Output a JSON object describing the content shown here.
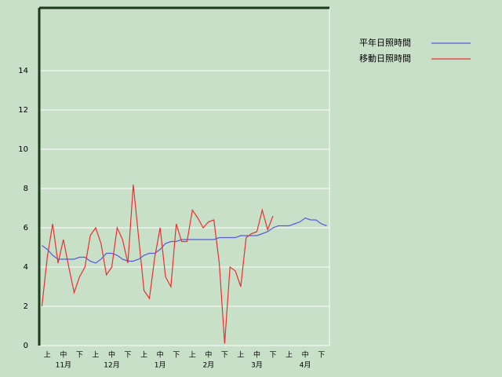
{
  "chart_data": {
    "type": "line",
    "categories": [
      null,
      "上",
      null,
      null,
      "中",
      null,
      null,
      "下",
      null,
      null,
      "上",
      null,
      null,
      "中",
      null,
      null,
      "下",
      null,
      null,
      "上",
      null,
      null,
      "中",
      null,
      null,
      "下",
      null,
      null,
      "上",
      null,
      null,
      "中",
      null,
      null,
      "下",
      null,
      null,
      "上",
      null,
      null,
      "中",
      null,
      null,
      "下",
      null,
      null,
      "上",
      null,
      null,
      "中",
      null,
      null,
      "下",
      null
    ],
    "month_labels": [
      "11月",
      "12月",
      "1月",
      "2月",
      "3月",
      "4月"
    ],
    "series": [
      {
        "name": "平年日照時間",
        "color": "#5a5ae0",
        "values": [
          5.1,
          4.9,
          4.6,
          4.4,
          4.4,
          4.4,
          4.4,
          4.5,
          4.5,
          4.3,
          4.2,
          4.4,
          4.7,
          4.7,
          4.6,
          4.4,
          4.3,
          4.3,
          4.4,
          4.6,
          4.7,
          4.7,
          4.9,
          5.2,
          5.3,
          5.3,
          5.4,
          5.4,
          5.4,
          5.4,
          5.4,
          5.4,
          5.4,
          5.5,
          5.5,
          5.5,
          5.5,
          5.6,
          5.6,
          5.6,
          5.6,
          5.7,
          5.8,
          6.0,
          6.1,
          6.1,
          6.1,
          6.2,
          6.3,
          6.5,
          6.4,
          6.4,
          6.2,
          6.1
        ]
      },
      {
        "name": "移動日照時間",
        "color": "#e83030",
        "values": [
          2.0,
          4.5,
          6.2,
          4.2,
          5.4,
          4.0,
          2.7,
          3.5,
          4.0,
          5.6,
          6.0,
          5.2,
          3.6,
          4.0,
          6.0,
          5.4,
          4.2,
          8.2,
          5.5,
          2.8,
          2.4,
          4.5,
          6.0,
          3.5,
          3.0,
          6.2,
          5.3,
          5.3,
          6.9,
          6.5,
          6.0,
          6.3,
          6.4,
          4.2,
          0.1,
          4.0,
          3.8,
          3.0,
          5.5,
          5.7,
          5.8,
          6.9,
          5.9,
          6.6,
          null,
          null,
          null,
          null,
          null,
          null,
          null,
          null,
          null,
          null
        ]
      }
    ],
    "ylim": [
      0,
      17.2
    ],
    "yticks": [
      0,
      2,
      4,
      6,
      8,
      10,
      12,
      14
    ],
    "grid": true,
    "legend": "top-right"
  }
}
